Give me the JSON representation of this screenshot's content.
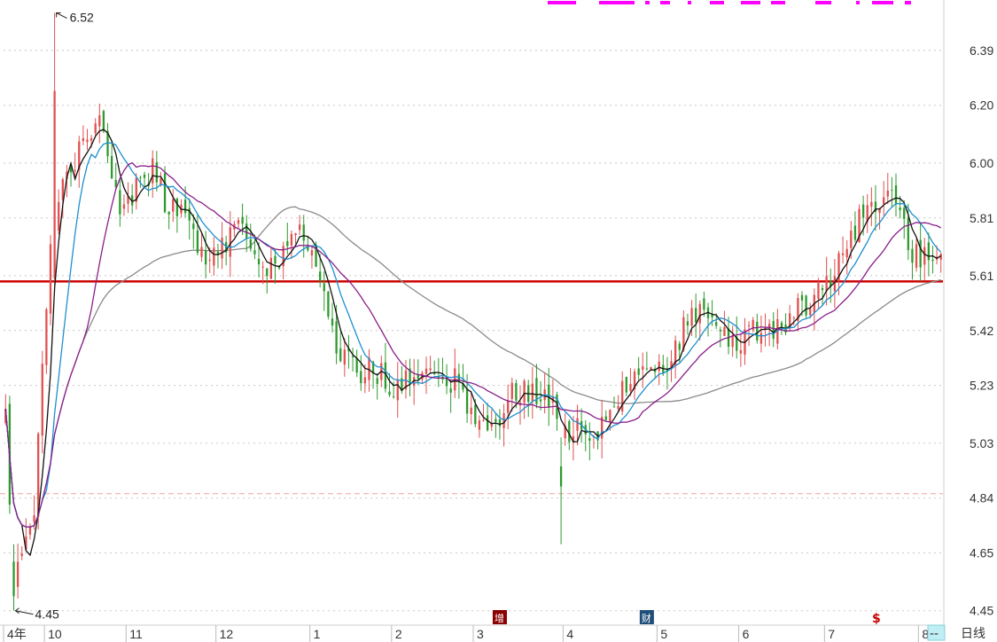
{
  "chart_data": {
    "type": "candlestick",
    "period_label": "日线",
    "period_box_label": "--",
    "yticks": [
      "6.39",
      "6.20",
      "6.00",
      "5.81",
      "5.61",
      "5.42",
      "5.23",
      "5.03",
      "4.84",
      "4.65",
      "4.45"
    ],
    "ylim": [
      4.4,
      6.54
    ],
    "x_months": [
      {
        "label": "4年",
        "idx": 0
      },
      {
        "label": "10",
        "idx": 10
      },
      {
        "label": "11",
        "idx": 30
      },
      {
        "label": "12",
        "idx": 52
      },
      {
        "label": "1",
        "idx": 75
      },
      {
        "label": "2",
        "idx": 95
      },
      {
        "label": "3",
        "idx": 115
      },
      {
        "label": "4",
        "idx": 137
      },
      {
        "label": "5",
        "idx": 160
      },
      {
        "label": "6",
        "idx": 180
      },
      {
        "label": "7",
        "idx": 201
      },
      {
        "label": "8",
        "idx": 224
      }
    ],
    "high_marker": {
      "label": "6.52",
      "idx": 12,
      "value": 6.52
    },
    "low_marker": {
      "label": "4.45",
      "idx": 2,
      "value": 4.45
    },
    "support_line": 5.59,
    "dashed_line": 4.855,
    "event_badges": [
      {
        "label": "增",
        "idx": 121,
        "color": "#8b0000"
      },
      {
        "label": "财",
        "idx": 157,
        "color": "#1f4e79"
      },
      {
        "label": "$",
        "idx": 213,
        "color": "#cc0000"
      }
    ],
    "ma_series": [
      {
        "color": "#111111",
        "period": 5
      },
      {
        "color": "#1e8fd0",
        "period": 10
      },
      {
        "color": "#8a1f8a",
        "period": 20
      },
      {
        "color": "#8a8a8a",
        "period": 60
      }
    ],
    "up_color": "#e05050",
    "down_color": "#2e9a2e",
    "ma_line_color": "#cc0000",
    "indicator_color": "#ff00ff",
    "anchors": [
      [
        0,
        5.1
      ],
      [
        2,
        4.55
      ],
      [
        4,
        4.62
      ],
      [
        7,
        4.8
      ],
      [
        9,
        5.3
      ],
      [
        11,
        5.75
      ],
      [
        14,
        5.9
      ],
      [
        17,
        6.0
      ],
      [
        20,
        6.1
      ],
      [
        23,
        6.12
      ],
      [
        25,
        6.05
      ],
      [
        28,
        5.85
      ],
      [
        31,
        5.88
      ],
      [
        34,
        5.95
      ],
      [
        36,
        5.98
      ],
      [
        39,
        5.88
      ],
      [
        42,
        5.85
      ],
      [
        44,
        5.8
      ],
      [
        47,
        5.72
      ],
      [
        50,
        5.68
      ],
      [
        53,
        5.7
      ],
      [
        56,
        5.78
      ],
      [
        59,
        5.74
      ],
      [
        62,
        5.68
      ],
      [
        64,
        5.64
      ],
      [
        67,
        5.66
      ],
      [
        70,
        5.72
      ],
      [
        73,
        5.77
      ],
      [
        75,
        5.72
      ],
      [
        77,
        5.6
      ],
      [
        80,
        5.42
      ],
      [
        83,
        5.32
      ],
      [
        86,
        5.28
      ],
      [
        89,
        5.3
      ],
      [
        92,
        5.26
      ],
      [
        95,
        5.24
      ],
      [
        98,
        5.25
      ],
      [
        101,
        5.28
      ],
      [
        104,
        5.24
      ],
      [
        107,
        5.22
      ],
      [
        110,
        5.24
      ],
      [
        113,
        5.18
      ],
      [
        116,
        5.12
      ],
      [
        119,
        5.1
      ],
      [
        122,
        5.14
      ],
      [
        125,
        5.22
      ],
      [
        128,
        5.2
      ],
      [
        131,
        5.18
      ],
      [
        134,
        5.16
      ],
      [
        136,
        5.08
      ],
      [
        138,
        5.02
      ],
      [
        140,
        5.1
      ],
      [
        142,
        5.08
      ],
      [
        145,
        5.06
      ],
      [
        148,
        5.1
      ],
      [
        151,
        5.2
      ],
      [
        154,
        5.25
      ],
      [
        157,
        5.26
      ],
      [
        160,
        5.28
      ],
      [
        163,
        5.32
      ],
      [
        166,
        5.42
      ],
      [
        168,
        5.47
      ],
      [
        171,
        5.47
      ],
      [
        174,
        5.44
      ],
      [
        177,
        5.38
      ],
      [
        180,
        5.4
      ],
      [
        183,
        5.42
      ],
      [
        186,
        5.43
      ],
      [
        189,
        5.44
      ],
      [
        192,
        5.45
      ],
      [
        195,
        5.5
      ],
      [
        198,
        5.56
      ],
      [
        200,
        5.58
      ],
      [
        203,
        5.62
      ],
      [
        206,
        5.7
      ],
      [
        209,
        5.82
      ],
      [
        212,
        5.84
      ],
      [
        214,
        5.86
      ],
      [
        216,
        5.88
      ],
      [
        218,
        5.85
      ],
      [
        220,
        5.78
      ],
      [
        222,
        5.7
      ],
      [
        224,
        5.66
      ],
      [
        226,
        5.68
      ],
      [
        228,
        5.67
      ],
      [
        229,
        5.65
      ]
    ],
    "n_candles": 230
  }
}
